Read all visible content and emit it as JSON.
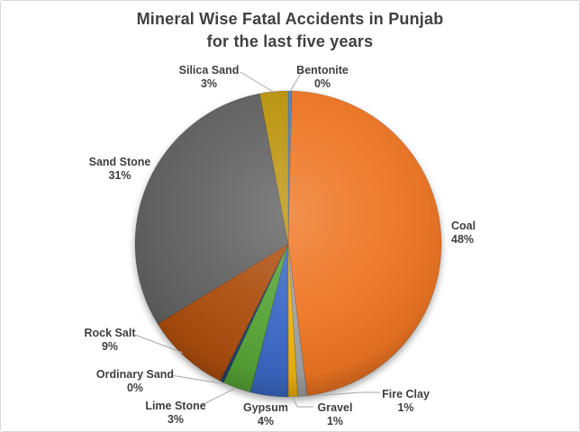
{
  "chart": {
    "title_line1": "Mineral Wise Fatal Accidents in Punjab",
    "title_line2": "for the last five years",
    "title_color": "#404040",
    "label_color": "#3F3F3F",
    "leader_line_color": "#A6A6A6",
    "frame_border_color": "#D8D8D8",
    "background_color": "#FFFFFF"
  },
  "chart_data": {
    "type": "pie",
    "title": "Mineral Wise Fatal Accidents in Punjab for the last five years",
    "start_angle_deg": 0,
    "direction": "clockwise",
    "legend": "none",
    "label_style": "category name + percentage, outside with leader lines",
    "slices": [
      {
        "label": "Bentonite",
        "pct": 0,
        "display": "0%",
        "color": "#4E86C8"
      },
      {
        "label": "Coal",
        "pct": 48,
        "display": "48%",
        "color": "#EE7423"
      },
      {
        "label": "Fire Clay",
        "pct": 1,
        "display": "1%",
        "color": "#A2A2A2"
      },
      {
        "label": "Gravel",
        "pct": 1,
        "display": "1%",
        "color": "#F0B40E"
      },
      {
        "label": "Gypsum",
        "pct": 4,
        "display": "4%",
        "color": "#3A68C4"
      },
      {
        "label": "Lime Stone",
        "pct": 3,
        "display": "3%",
        "color": "#56A336"
      },
      {
        "label": "Ordinary Sand",
        "pct": 0,
        "display": "0%",
        "color": "#20406E"
      },
      {
        "label": "Rock Salt",
        "pct": 9,
        "display": "9%",
        "color": "#AC4E11"
      },
      {
        "label": "Sand Stone",
        "pct": 31,
        "display": "31%",
        "color": "#606060"
      },
      {
        "label": "Silica Sand",
        "pct": 3,
        "display": "3%",
        "color": "#BC930C"
      }
    ]
  }
}
